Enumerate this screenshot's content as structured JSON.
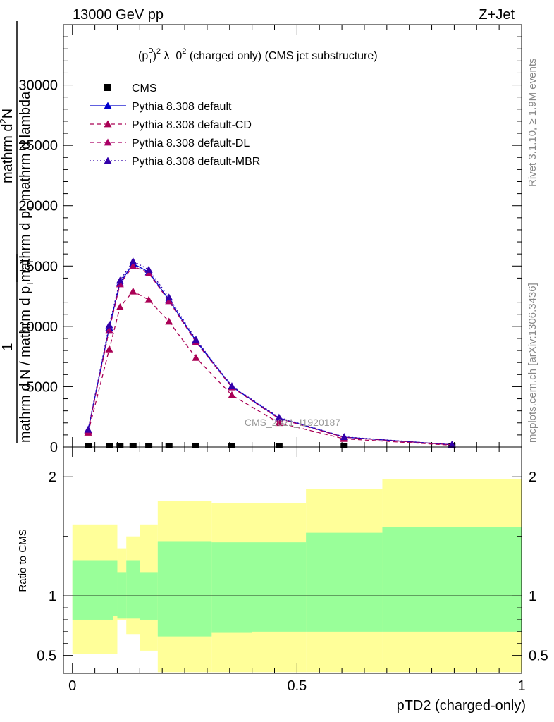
{
  "header": {
    "left": "13000 GeV pp",
    "right": "Z+Jet"
  },
  "side_labels": {
    "rivet": "Rivet 3.1.10, ≥ 1.9M events",
    "mcplots": "mcplots.cern.ch [arXiv:1306.3436]"
  },
  "colors": {
    "default": "#0000cc",
    "cd": "#aa0055",
    "dl": "#aa0066",
    "mbr": "#3300aa",
    "band_inner": "#99ff99",
    "band_outer": "#ffff99"
  },
  "chart_data": [
    {
      "type": "line",
      "title_parts": {
        "p": "(p",
        "sup1": "D",
        "sub1": "T",
        "close": ")",
        "sup2": "2",
        "mid": " λ_0",
        "sup3": "2",
        "rest": " (charged only) (CMS jet substructure)"
      },
      "ylabel_parts": {
        "num": "1",
        "den": "mathrm d N / mathrm d p",
        "den_sub": "T",
        "frac_num": "mathrm d",
        "frac_num_sup": "2",
        "frac_num2": "N",
        "frac_den": "mathrm d p",
        "frac_den_sub": "T",
        "frac_den2": " mathrm d lambda"
      },
      "watermark": "CMS_2021_I1920187",
      "ylim": [
        0,
        35000
      ],
      "xlim": [
        -0.02,
        1.0
      ],
      "yticks": [
        0,
        5000,
        10000,
        15000,
        20000,
        25000,
        30000
      ],
      "ytick_labels": [
        "0",
        "5000",
        "10000",
        "15000",
        "20000",
        "25000",
        "30000"
      ],
      "x": [
        0.035,
        0.082,
        0.106,
        0.135,
        0.17,
        0.215,
        0.275,
        0.355,
        0.46,
        0.605,
        0.845
      ],
      "series": [
        {
          "name": "CMS",
          "key": "cms",
          "marker": "square",
          "values": [
            0.5,
            0.5,
            0.5,
            0.5,
            0.5,
            0.5,
            0.5,
            0.5,
            0.5,
            0.5,
            0.5
          ]
        },
        {
          "name": "Pythia 8.308 default",
          "key": "default",
          "style": "solid",
          "values": [
            1400,
            9900,
            13600,
            15200,
            14500,
            12200,
            8800,
            5000,
            2400,
            820,
            190
          ]
        },
        {
          "name": "Pythia 8.308 default-CD",
          "key": "cd",
          "style": "dashed",
          "values": [
            1200,
            8100,
            11600,
            12900,
            12200,
            10400,
            7400,
            4300,
            2000,
            680,
            150
          ]
        },
        {
          "name": "Pythia 8.308 default-DL",
          "key": "dl",
          "style": "dashed",
          "values": [
            1350,
            9700,
            13500,
            15000,
            14400,
            12100,
            8700,
            4950,
            2350,
            800,
            185
          ]
        },
        {
          "name": "Pythia 8.308 default-MBR",
          "key": "mbr",
          "style": "dotted",
          "values": [
            1450,
            10100,
            13800,
            15400,
            14700,
            12400,
            8900,
            5050,
            2450,
            840,
            195
          ]
        }
      ]
    },
    {
      "type": "area",
      "ylabel": "Ratio to CMS",
      "xlabel": "pTD2 (charged-only)",
      "ylim": [
        0.35,
        2.25
      ],
      "xlim": [
        -0.02,
        1.0
      ],
      "yticks": [
        0.5,
        1,
        2
      ],
      "ytick_labels": [
        "0.5",
        "1",
        "2"
      ],
      "xticks": [
        0,
        0.5,
        1
      ],
      "xtick_labels": [
        "0",
        "0.5",
        "1"
      ],
      "bins": [
        0.0,
        0.09,
        0.1,
        0.12,
        0.15,
        0.19,
        0.24,
        0.31,
        0.4,
        0.52,
        0.69,
        1.0
      ],
      "inner_band": {
        "low": [
          0.8,
          0.83,
          0.81,
          0.81,
          0.8,
          0.66,
          0.66,
          0.69,
          0.7,
          0.7,
          0.7
        ],
        "high": [
          1.3,
          1.3,
          1.2,
          1.3,
          1.2,
          1.46,
          1.46,
          1.45,
          1.45,
          1.53,
          1.58
        ]
      },
      "outer_band": {
        "low": [
          0.51,
          0.51,
          0.8,
          0.68,
          0.54,
          0.36,
          0.36,
          0.36,
          0.36,
          0.36,
          0.36
        ],
        "high": [
          1.6,
          1.6,
          1.4,
          1.5,
          1.6,
          1.8,
          1.8,
          1.78,
          1.78,
          1.9,
          1.98
        ]
      },
      "reference": 1
    }
  ]
}
